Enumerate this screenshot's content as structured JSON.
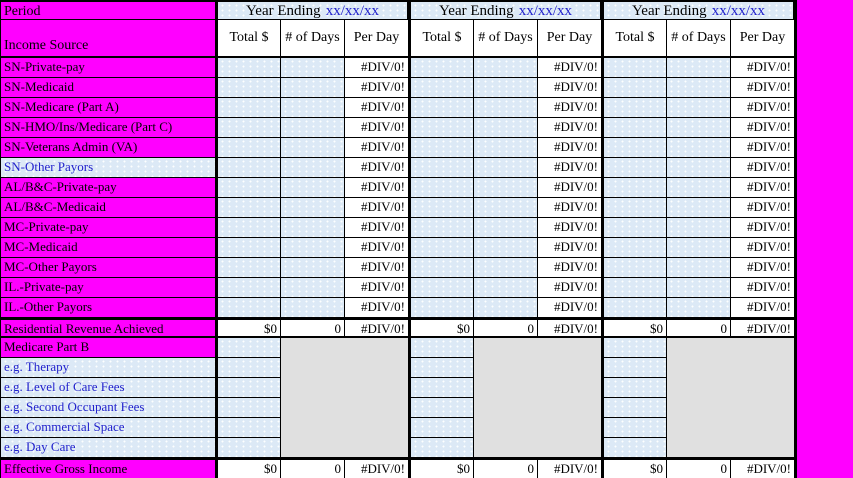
{
  "colors": {
    "sheet_magenta": "#FF00FF",
    "input_cell_blue": "#DCE9F6",
    "disabled_gray": "#E0E0E0",
    "link_blue": "#2222CC",
    "grid_black": "#000000"
  },
  "header": {
    "period": "Period",
    "income_source": "Income Source",
    "year_ending": "Year Ending",
    "year_ending_date": "xx/xx/xx",
    "group_count": 3,
    "subcolumns": [
      "Total $",
      "# of Days",
      "Per Day"
    ]
  },
  "error_value": "#DIV/0!",
  "rows": [
    {
      "label": "SN-Private-pay",
      "type": "input",
      "total": "",
      "days": "",
      "per_day": "#DIV/0!"
    },
    {
      "label": "SN-Medicaid",
      "type": "input",
      "total": "",
      "days": "",
      "per_day": "#DIV/0!"
    },
    {
      "label": "SN-Medicare (Part A)",
      "type": "input",
      "total": "",
      "days": "",
      "per_day": "#DIV/0!"
    },
    {
      "label": "SN-HMO/Ins/Medicare (Part C)",
      "type": "input",
      "total": "",
      "days": "",
      "per_day": "#DIV/0!"
    },
    {
      "label": "SN-Veterans Admin (VA)",
      "type": "input",
      "total": "",
      "days": "",
      "per_day": "#DIV/0!"
    },
    {
      "label": "SN-Other Payors",
      "type": "input_blue",
      "total": "",
      "days": "",
      "per_day": "#DIV/0!"
    },
    {
      "label": "AL/B&C-Private-pay",
      "type": "input",
      "total": "",
      "days": "",
      "per_day": "#DIV/0!"
    },
    {
      "label": "AL/B&C-Medicaid",
      "type": "input",
      "total": "",
      "days": "",
      "per_day": "#DIV/0!"
    },
    {
      "label": "MC-Private-pay",
      "type": "input",
      "total": "",
      "days": "",
      "per_day": "#DIV/0!"
    },
    {
      "label": "MC-Medicaid",
      "type": "input",
      "total": "",
      "days": "",
      "per_day": "#DIV/0!"
    },
    {
      "label": "MC-Other Payors",
      "type": "input",
      "total": "",
      "days": "",
      "per_day": "#DIV/0!"
    },
    {
      "label": "IL.-Private-pay",
      "type": "input",
      "total": "",
      "days": "",
      "per_day": "#DIV/0!"
    },
    {
      "label": "IL.-Other Payors",
      "type": "input",
      "total": "",
      "days": "",
      "per_day": "#DIV/0!"
    },
    {
      "label": "Residential Revenue Achieved",
      "type": "total",
      "total": "$0",
      "days": "0",
      "per_day": "#DIV/0!"
    },
    {
      "label": "Medicare Part B",
      "type": "section",
      "total": "",
      "days": "",
      "per_day": ""
    },
    {
      "label": "e.g. Therapy",
      "type": "example",
      "total": "",
      "days": "",
      "per_day": ""
    },
    {
      "label": "e.g. Level of Care Fees",
      "type": "example",
      "total": "",
      "days": "",
      "per_day": ""
    },
    {
      "label": "e.g. Second Occupant Fees",
      "type": "example",
      "total": "",
      "days": "",
      "per_day": ""
    },
    {
      "label": "e.g. Commercial Space",
      "type": "example",
      "total": "",
      "days": "",
      "per_day": ""
    },
    {
      "label": "e.g. Day Care",
      "type": "example",
      "total": "",
      "days": "",
      "per_day": ""
    },
    {
      "label": "Effective Gross Income",
      "type": "grand_total",
      "total": "$0",
      "days": "0",
      "per_day": "#DIV/0!"
    }
  ]
}
